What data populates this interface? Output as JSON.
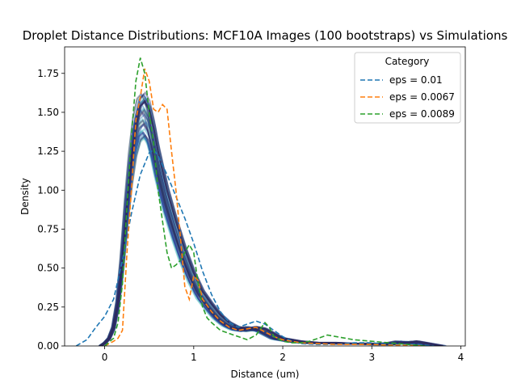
{
  "chart_data": {
    "type": "line",
    "title": "Droplet Distance Distributions: MCF10A Images (100 bootstraps) vs Simulations",
    "xlabel": "Distance (um)",
    "ylabel": "Density",
    "xlim": [
      -0.45,
      4.05
    ],
    "ylim": [
      0,
      1.92
    ],
    "xticks": [
      0,
      1,
      2,
      3,
      4
    ],
    "yticks": [
      0.0,
      0.25,
      0.5,
      0.75,
      1.0,
      1.25,
      1.5,
      1.75
    ],
    "xtick_labels": [
      "0",
      "1",
      "2",
      "3",
      "4"
    ],
    "ytick_labels": [
      "0.00",
      "0.25",
      "0.50",
      "0.75",
      "1.00",
      "1.25",
      "1.50",
      "1.75"
    ],
    "legend": {
      "title": "Category",
      "position": "top-right",
      "entries": [
        "eps = 0.01",
        "eps = 0.0067",
        "eps = 0.0089"
      ]
    },
    "bootstrap": {
      "description_key": "MCF10A Images (100 bootstraps)",
      "x": [
        -0.05,
        0.0,
        0.05,
        0.1,
        0.15,
        0.2,
        0.25,
        0.3,
        0.35,
        0.4,
        0.45,
        0.5,
        0.55,
        0.6,
        0.7,
        0.8,
        0.9,
        1.0,
        1.1,
        1.2,
        1.3,
        1.4,
        1.5,
        1.6,
        1.7,
        1.8,
        1.9,
        2.0,
        2.2,
        2.4,
        2.6,
        2.8,
        3.0,
        3.2,
        3.4,
        3.5,
        3.6,
        3.8
      ],
      "y": [
        0.0,
        0.02,
        0.05,
        0.12,
        0.28,
        0.55,
        0.9,
        1.2,
        1.42,
        1.54,
        1.57,
        1.52,
        1.4,
        1.25,
        1.0,
        0.8,
        0.62,
        0.47,
        0.35,
        0.27,
        0.2,
        0.15,
        0.12,
        0.11,
        0.12,
        0.11,
        0.08,
        0.05,
        0.03,
        0.02,
        0.02,
        0.015,
        0.015,
        0.01,
        0.02,
        0.03,
        0.02,
        0.0
      ],
      "colors": [
        "#bfe3d3",
        "#7fcdbb",
        "#41b6c4",
        "#2c7fb8",
        "#253494",
        "#2d2a5e"
      ]
    },
    "series": [
      {
        "name": "eps = 0.01",
        "color": "#1f77b4",
        "x": [
          -0.32,
          -0.2,
          -0.1,
          0.0,
          0.1,
          0.2,
          0.3,
          0.4,
          0.5,
          0.55,
          0.6,
          0.7,
          0.8,
          0.9,
          1.0,
          1.1,
          1.2,
          1.3,
          1.4,
          1.5,
          1.6,
          1.7,
          1.8,
          1.9,
          2.0,
          2.1,
          2.2,
          2.4,
          2.6,
          2.8,
          3.0,
          3.2,
          3.5,
          3.7
        ],
        "y": [
          0.0,
          0.04,
          0.12,
          0.19,
          0.3,
          0.55,
          0.85,
          1.1,
          1.24,
          1.26,
          1.22,
          1.1,
          0.96,
          0.82,
          0.66,
          0.48,
          0.33,
          0.22,
          0.15,
          0.12,
          0.14,
          0.16,
          0.14,
          0.1,
          0.06,
          0.03,
          0.015,
          0.01,
          0.01,
          0.02,
          0.02,
          0.01,
          0.01,
          0.0
        ]
      },
      {
        "name": "eps = 0.0067",
        "color": "#ff7f0e",
        "x": [
          0.0,
          0.1,
          0.15,
          0.2,
          0.25,
          0.3,
          0.35,
          0.4,
          0.45,
          0.5,
          0.55,
          0.6,
          0.65,
          0.7,
          0.75,
          0.8,
          0.85,
          0.9,
          0.95,
          1.0,
          1.05,
          1.1,
          1.2,
          1.3,
          1.4,
          1.5,
          1.6,
          1.7,
          1.8,
          1.9,
          2.0,
          2.2,
          2.4,
          2.6,
          2.8,
          3.0,
          3.2,
          3.4,
          3.6
        ],
        "y": [
          0.0,
          0.03,
          0.05,
          0.1,
          0.6,
          1.0,
          1.45,
          1.6,
          1.78,
          1.7,
          1.52,
          1.5,
          1.55,
          1.52,
          1.25,
          1.0,
          0.7,
          0.38,
          0.3,
          0.45,
          0.42,
          0.3,
          0.22,
          0.16,
          0.12,
          0.1,
          0.11,
          0.12,
          0.09,
          0.06,
          0.04,
          0.02,
          0.015,
          0.01,
          0.01,
          0.01,
          0.005,
          0.005,
          0.0
        ]
      },
      {
        "name": "eps = 0.0089",
        "color": "#2ca02c",
        "x": [
          0.0,
          0.1,
          0.15,
          0.2,
          0.25,
          0.3,
          0.35,
          0.4,
          0.45,
          0.5,
          0.55,
          0.6,
          0.65,
          0.7,
          0.75,
          0.8,
          0.85,
          0.9,
          0.95,
          1.0,
          1.05,
          1.1,
          1.15,
          1.2,
          1.3,
          1.4,
          1.5,
          1.6,
          1.7,
          1.8,
          1.85,
          1.9,
          2.0,
          2.1,
          2.2,
          2.3,
          2.4,
          2.5,
          2.6,
          2.8,
          3.0,
          3.2,
          3.4,
          3.6
        ],
        "y": [
          0.0,
          0.05,
          0.15,
          0.4,
          0.9,
          1.35,
          1.7,
          1.85,
          1.75,
          1.5,
          1.3,
          1.0,
          0.8,
          0.6,
          0.5,
          0.52,
          0.55,
          0.6,
          0.65,
          0.6,
          0.4,
          0.25,
          0.18,
          0.15,
          0.1,
          0.08,
          0.06,
          0.04,
          0.07,
          0.15,
          0.12,
          0.06,
          0.03,
          0.02,
          0.02,
          0.03,
          0.05,
          0.07,
          0.06,
          0.04,
          0.03,
          0.02,
          0.01,
          0.0
        ]
      }
    ]
  }
}
